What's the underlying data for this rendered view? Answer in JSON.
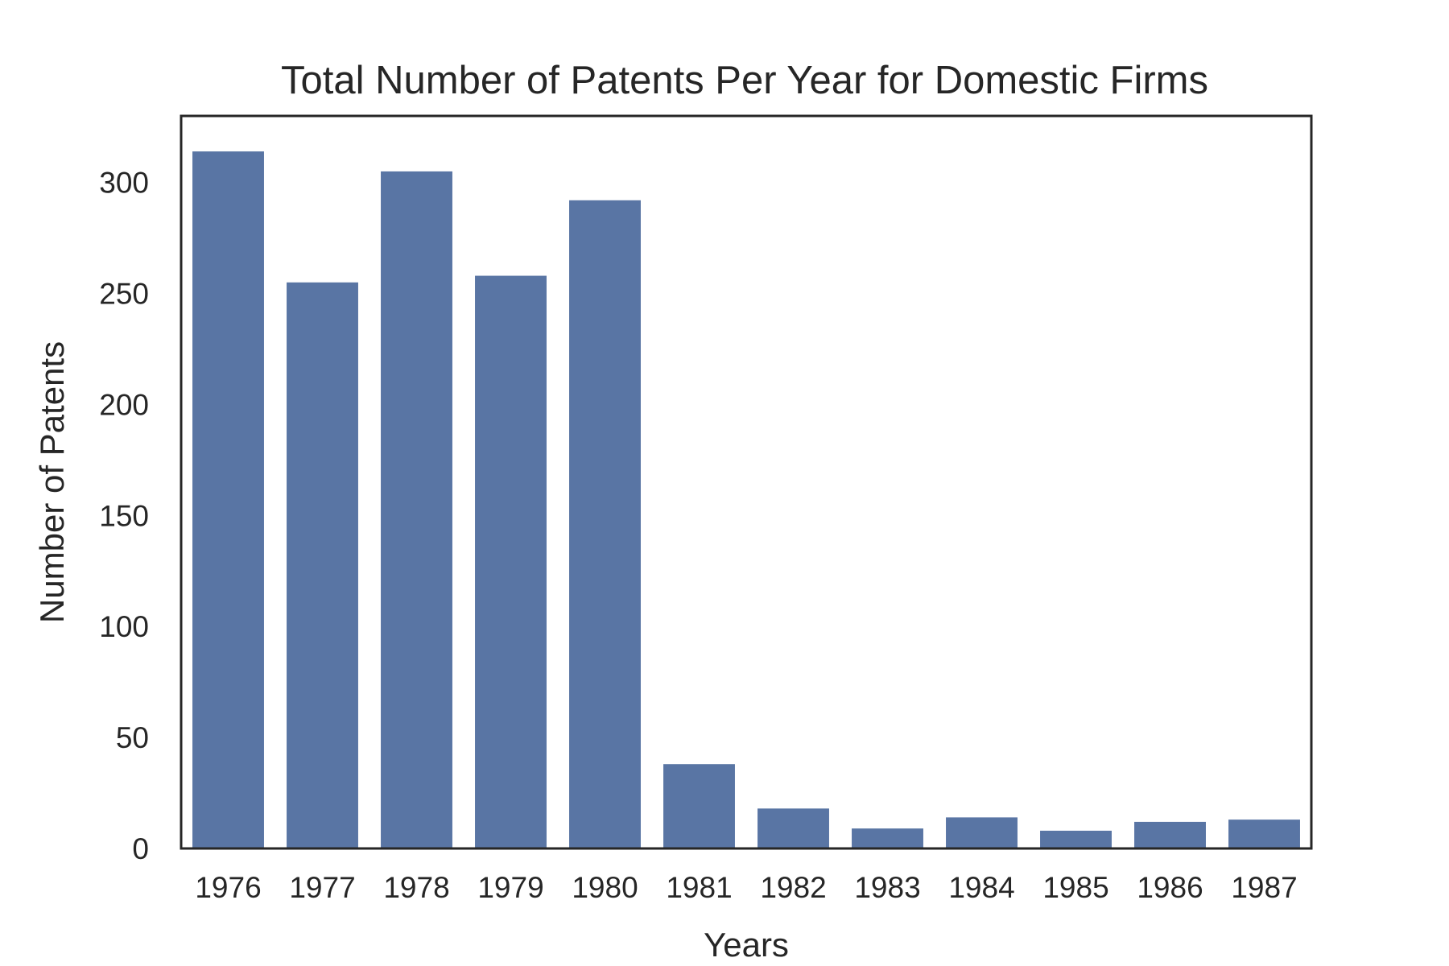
{
  "colors": {
    "bar": "#5975a4",
    "axis": "#262626",
    "background": "#ffffff"
  },
  "chart_data": {
    "type": "bar",
    "title": "Total Number of Patents Per Year for Domestic Firms",
    "xlabel": "Years",
    "ylabel": "Number of Patents",
    "categories": [
      "1976",
      "1977",
      "1978",
      "1979",
      "1980",
      "1981",
      "1982",
      "1983",
      "1984",
      "1985",
      "1986",
      "1987"
    ],
    "values": [
      314,
      255,
      305,
      258,
      292,
      38,
      18,
      9,
      14,
      8,
      12,
      13
    ],
    "ylim": [
      0,
      330
    ],
    "yticks": [
      0,
      50,
      100,
      150,
      200,
      250,
      300
    ],
    "grid": false,
    "legend": "none"
  }
}
